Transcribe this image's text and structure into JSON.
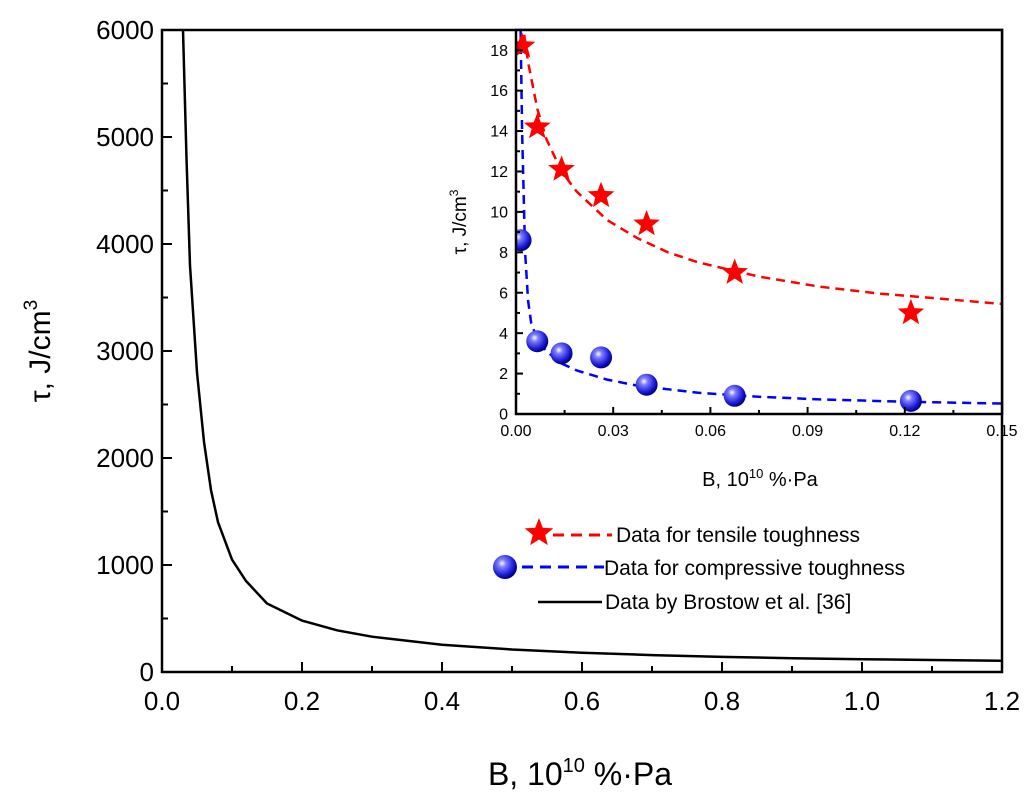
{
  "chart_data": [
    {
      "panel": "main",
      "type": "line",
      "title": "",
      "xlabel_main": "B, 10",
      "xlabel_sup": "10",
      "xlabel_rest": " %·Pa",
      "ylabel_main": "τ, J/cm",
      "ylabel_sup": "3",
      "xlim": [
        0,
        1.2
      ],
      "ylim": [
        0,
        6000
      ],
      "xticks": [
        "0.0",
        "0.2",
        "0.4",
        "0.6",
        "0.8",
        "1.0",
        "1.2"
      ],
      "yticks": [
        "0",
        "1000",
        "2000",
        "3000",
        "4000",
        "5000",
        "6000"
      ],
      "grid": false,
      "series": [
        {
          "name": "Data by Brostow et al. [36]",
          "style": "solid",
          "color": "#000000",
          "x": [
            0.03,
            0.035,
            0.04,
            0.05,
            0.06,
            0.07,
            0.08,
            0.1,
            0.12,
            0.15,
            0.2,
            0.25,
            0.3,
            0.4,
            0.5,
            0.6,
            0.7,
            0.8,
            0.9,
            1.0,
            1.1,
            1.2
          ],
          "y": [
            6000,
            4800,
            3800,
            2800,
            2150,
            1700,
            1400,
            1050,
            850,
            640,
            480,
            390,
            330,
            255,
            210,
            180,
            158,
            141,
            129,
            120,
            112,
            106
          ]
        }
      ]
    },
    {
      "panel": "inset",
      "type": "scatter",
      "title": "",
      "xlabel_main": "B, 10",
      "xlabel_sup": "10",
      "xlabel_rest": " %·Pa",
      "ylabel_main": "τ, J/cm",
      "ylabel_sup": "3",
      "xlim": [
        0,
        0.16
      ],
      "ylim": [
        0,
        19
      ],
      "xticks": [
        "0.00",
        "0.03",
        "0.06",
        "0.09",
        "0.12",
        "0.15"
      ],
      "yticks": [
        "0",
        "2",
        "4",
        "6",
        "8",
        "10",
        "12",
        "14",
        "16",
        "18"
      ],
      "grid": false,
      "legend": "bottom-right",
      "series": [
        {
          "name": "Data for tensile toughness",
          "marker": "star",
          "color": "#ff0000",
          "points_x": [
            0.002,
            0.007,
            0.015,
            0.028,
            0.043,
            0.072,
            0.13
          ],
          "points_y": [
            18.2,
            14.2,
            12.1,
            10.8,
            9.4,
            7.0,
            5.0
          ],
          "fit_x": [
            0.002,
            0.004,
            0.007,
            0.01,
            0.015,
            0.02,
            0.03,
            0.04,
            0.05,
            0.06,
            0.08,
            0.1,
            0.12,
            0.14,
            0.16
          ],
          "fit_y": [
            19.5,
            17.4,
            15.1,
            13.6,
            12.0,
            11.0,
            9.6,
            8.7,
            8.0,
            7.5,
            6.8,
            6.3,
            5.95,
            5.7,
            5.45
          ]
        },
        {
          "name": "Data for compressive toughness",
          "marker": "sphere",
          "color": "#0000ff",
          "points_x": [
            0.0015,
            0.007,
            0.015,
            0.028,
            0.043,
            0.072,
            0.13
          ],
          "points_y": [
            8.6,
            3.6,
            3.0,
            2.8,
            1.45,
            0.9,
            0.65
          ],
          "fit_x": [
            0.0015,
            0.002,
            0.003,
            0.004,
            0.005,
            0.007,
            0.01,
            0.015,
            0.02,
            0.03,
            0.04,
            0.06,
            0.08,
            0.1,
            0.13,
            0.16
          ],
          "fit_y": [
            19.0,
            14.0,
            8.0,
            5.6,
            4.5,
            3.7,
            3.1,
            2.5,
            2.15,
            1.7,
            1.4,
            1.05,
            0.85,
            0.72,
            0.6,
            0.52
          ]
        }
      ]
    }
  ]
}
